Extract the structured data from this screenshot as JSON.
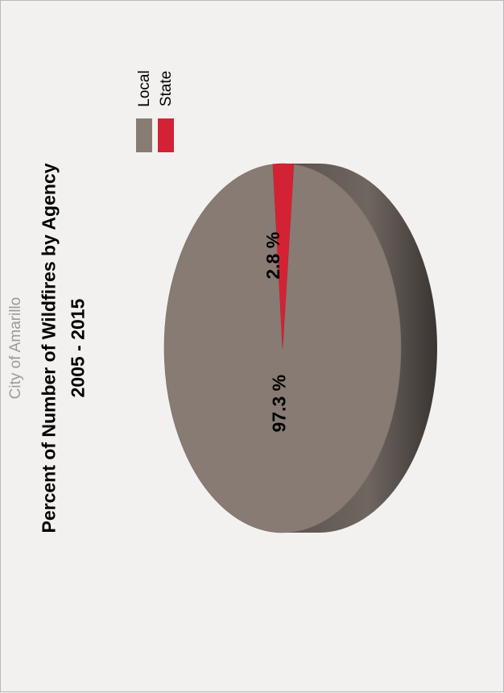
{
  "chart_data": {
    "type": "pie",
    "subtitle": "City of Amarillo",
    "title": "Percent of Number of Wildfires by Agency",
    "title_line2": "2005 - 2015",
    "series": [
      {
        "name": "Local",
        "value": 97.3,
        "label": "97.3 %",
        "color": "#877b73"
      },
      {
        "name": "State",
        "value": 2.8,
        "label": "2.8 %",
        "color": "#d42235"
      }
    ],
    "legend_position": "top-right",
    "style": "3d-rotated"
  }
}
